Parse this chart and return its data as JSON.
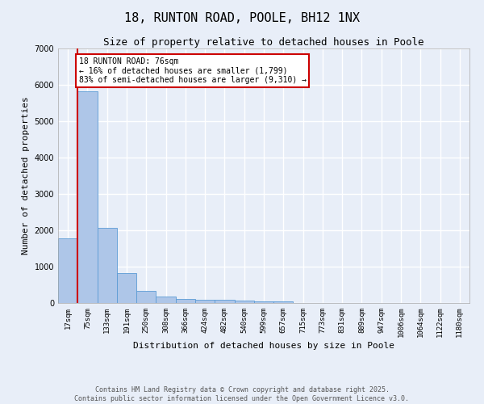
{
  "title": "18, RUNTON ROAD, POOLE, BH12 1NX",
  "subtitle": "Size of property relative to detached houses in Poole",
  "xlabel": "Distribution of detached houses by size in Poole",
  "ylabel": "Number of detached properties",
  "categories": [
    "17sqm",
    "75sqm",
    "133sqm",
    "191sqm",
    "250sqm",
    "308sqm",
    "366sqm",
    "424sqm",
    "482sqm",
    "540sqm",
    "599sqm",
    "657sqm",
    "715sqm",
    "773sqm",
    "831sqm",
    "889sqm",
    "947sqm",
    "1006sqm",
    "1064sqm",
    "1122sqm",
    "1180sqm"
  ],
  "values": [
    1780,
    5820,
    2070,
    820,
    340,
    175,
    115,
    95,
    85,
    65,
    50,
    35,
    0,
    0,
    0,
    0,
    0,
    0,
    0,
    0,
    0
  ],
  "bar_color": "#aec6e8",
  "bar_edge_color": "#5b9bd5",
  "property_line_x": 1,
  "annotation_text": "18 RUNTON ROAD: 76sqm\n← 16% of detached houses are smaller (1,799)\n83% of semi-detached houses are larger (9,310) →",
  "annotation_box_color": "#ffffff",
  "annotation_box_edge": "#cc0000",
  "red_line_color": "#cc0000",
  "ylim": [
    0,
    7000
  ],
  "yticks": [
    0,
    1000,
    2000,
    3000,
    4000,
    5000,
    6000,
    7000
  ],
  "bg_color": "#e8eef8",
  "grid_color": "#ffffff",
  "footer_line1": "Contains HM Land Registry data © Crown copyright and database right 2025.",
  "footer_line2": "Contains public sector information licensed under the Open Government Licence v3.0.",
  "title_fontsize": 11,
  "subtitle_fontsize": 9,
  "tick_fontsize": 6.5,
  "label_fontsize": 8,
  "footer_fontsize": 6
}
